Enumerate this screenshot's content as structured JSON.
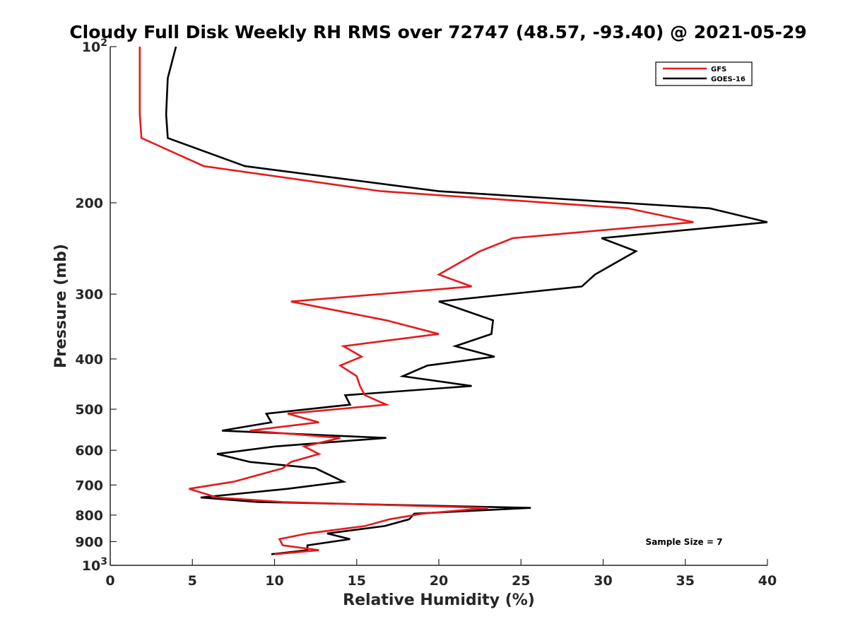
{
  "chart_data": {
    "type": "line",
    "title": "Cloudy Full Disk Weekly RH RMS over 72747 (48.57, -93.40) @ 2021-05-29",
    "xlabel": "Relative Humidity (%)",
    "ylabel": "Pressure (mb)",
    "xlim": [
      0,
      40
    ],
    "ylim": [
      100,
      1000
    ],
    "yscale": "log",
    "y_reversed": true,
    "grid": false,
    "xticks": [
      0,
      5,
      10,
      15,
      20,
      25,
      30,
      35,
      40
    ],
    "xtick_labels": [
      "0",
      "5",
      "10",
      "15",
      "20",
      "25",
      "30",
      "35",
      "40"
    ],
    "yticks": [
      {
        "value": 100,
        "base": "10",
        "exp": "2"
      },
      {
        "value": 200,
        "label": "200"
      },
      {
        "value": 300,
        "label": "300"
      },
      {
        "value": 400,
        "label": "400"
      },
      {
        "value": 500,
        "label": "500"
      },
      {
        "value": 600,
        "label": "600"
      },
      {
        "value": 700,
        "label": "700"
      },
      {
        "value": 800,
        "label": "800"
      },
      {
        "value": 900,
        "label": "900"
      },
      {
        "value": 1000,
        "base": "10",
        "exp": "3"
      }
    ],
    "legend_position": "top-right",
    "annotation": "Sample Size = 7",
    "series": [
      {
        "name": "GFS",
        "color": "#e41a1c",
        "points": [
          [
            1.8,
            100
          ],
          [
            1.8,
            115
          ],
          [
            1.8,
            135
          ],
          [
            1.9,
            150
          ],
          [
            5.7,
            170
          ],
          [
            16.5,
            190
          ],
          [
            31.5,
            205
          ],
          [
            35.5,
            218
          ],
          [
            24.5,
            234
          ],
          [
            22.5,
            248
          ],
          [
            20.0,
            275
          ],
          [
            22.0,
            290
          ],
          [
            11.0,
            310
          ],
          [
            16.8,
            337
          ],
          [
            20.0,
            358
          ],
          [
            14.2,
            378
          ],
          [
            15.3,
            396
          ],
          [
            14.0,
            412
          ],
          [
            15.0,
            432
          ],
          [
            15.2,
            451
          ],
          [
            15.5,
            470
          ],
          [
            16.8,
            490
          ],
          [
            10.8,
            510
          ],
          [
            12.7,
            530
          ],
          [
            8.5,
            550
          ],
          [
            14.0,
            568
          ],
          [
            11.8,
            590
          ],
          [
            12.7,
            610
          ],
          [
            11.0,
            632
          ],
          [
            10.5,
            650
          ],
          [
            7.5,
            690
          ],
          [
            4.8,
            712
          ],
          [
            6.5,
            740
          ],
          [
            10.5,
            755
          ],
          [
            23.0,
            775
          ],
          [
            19.0,
            795
          ],
          [
            17.0,
            815
          ],
          [
            15.5,
            840
          ],
          [
            12.0,
            868
          ],
          [
            10.3,
            890
          ],
          [
            10.5,
            915
          ],
          [
            12.7,
            935
          ],
          [
            10.0,
            952
          ]
        ]
      },
      {
        "name": "GOES-16",
        "color": "#000000",
        "points": [
          [
            4.0,
            100
          ],
          [
            3.5,
            115
          ],
          [
            3.4,
            135
          ],
          [
            3.5,
            150
          ],
          [
            8.2,
            170
          ],
          [
            20.0,
            190
          ],
          [
            36.5,
            205
          ],
          [
            40.0,
            218
          ],
          [
            29.9,
            234
          ],
          [
            32.0,
            248
          ],
          [
            29.5,
            275
          ],
          [
            28.7,
            290
          ],
          [
            20.0,
            310
          ],
          [
            23.3,
            337
          ],
          [
            23.2,
            358
          ],
          [
            21.0,
            378
          ],
          [
            23.4,
            396
          ],
          [
            19.3,
            412
          ],
          [
            17.8,
            432
          ],
          [
            22.0,
            451
          ],
          [
            14.3,
            470
          ],
          [
            14.6,
            490
          ],
          [
            9.5,
            510
          ],
          [
            9.8,
            530
          ],
          [
            6.8,
            550
          ],
          [
            16.8,
            568
          ],
          [
            10.0,
            590
          ],
          [
            6.5,
            610
          ],
          [
            8.5,
            632
          ],
          [
            12.5,
            650
          ],
          [
            14.2,
            690
          ],
          [
            10.8,
            712
          ],
          [
            5.5,
            740
          ],
          [
            9.0,
            755
          ],
          [
            25.6,
            775
          ],
          [
            18.5,
            795
          ],
          [
            18.2,
            815
          ],
          [
            16.7,
            840
          ],
          [
            13.2,
            868
          ],
          [
            14.6,
            890
          ],
          [
            12.0,
            915
          ],
          [
            12.0,
            935
          ],
          [
            9.8,
            952
          ]
        ]
      }
    ]
  }
}
